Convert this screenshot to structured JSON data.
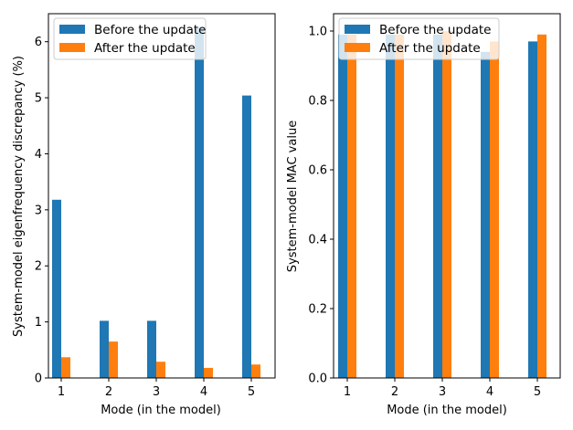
{
  "chart_data": [
    {
      "type": "bar",
      "categories": [
        "1",
        "2",
        "3",
        "4",
        "5"
      ],
      "series": [
        {
          "name": "Before the update",
          "color": "#1f77b4",
          "values": [
            3.18,
            1.02,
            1.02,
            6.25,
            5.04
          ]
        },
        {
          "name": "After the update",
          "color": "#ff7f0e",
          "values": [
            0.37,
            0.65,
            0.29,
            0.18,
            0.24
          ]
        }
      ],
      "xlabel": "Mode (in the model)",
      "ylabel": "System-model eigenfrequency discrepancy (%)",
      "ylim": [
        0,
        6.5
      ],
      "yticks": [
        "0",
        "1",
        "2",
        "3",
        "4",
        "5",
        "6"
      ],
      "legend_position": "top-left"
    },
    {
      "type": "bar",
      "categories": [
        "1",
        "2",
        "3",
        "4",
        "5"
      ],
      "series": [
        {
          "name": "Before the update",
          "color": "#1f77b4",
          "values": [
            0.99,
            0.99,
            0.99,
            0.94,
            0.97
          ]
        },
        {
          "name": "After the update",
          "color": "#ff7f0e",
          "values": [
            0.99,
            0.99,
            1.0,
            0.97,
            0.99
          ]
        }
      ],
      "xlabel": "Mode (in the model)",
      "ylabel": "System-model MAC value",
      "ylim": [
        0,
        1.05
      ],
      "yticks": [
        "0.0",
        "0.2",
        "0.4",
        "0.6",
        "0.8",
        "1.0"
      ],
      "legend_position": "top-left"
    }
  ]
}
